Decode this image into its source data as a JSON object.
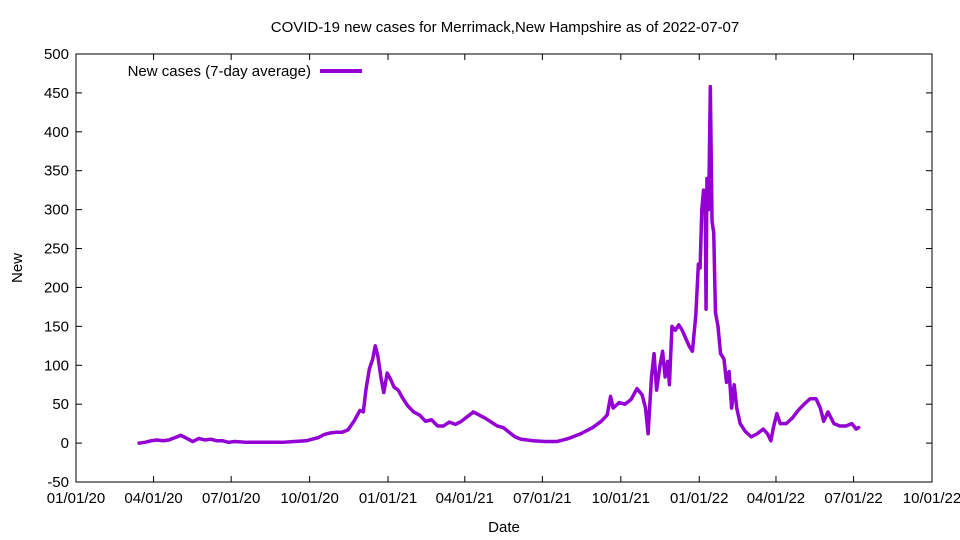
{
  "chart_data": {
    "type": "line",
    "title": "COVID-19 new cases for Merrimack,New Hampshire as of 2022-07-07",
    "xlabel": "Date",
    "ylabel": "New",
    "xlim": [
      "2020-01-01",
      "2022-10-01"
    ],
    "ylim": [
      -50,
      500
    ],
    "grid": false,
    "legend_position": "top-left",
    "x_ticks": [
      "2020-01-01",
      "2020-04-01",
      "2020-07-01",
      "2020-10-01",
      "2021-01-01",
      "2021-04-01",
      "2021-07-01",
      "2021-10-01",
      "2022-01-01",
      "2022-04-01",
      "2022-07-01",
      "2022-10-01"
    ],
    "x_tick_labels": [
      "01/01/20",
      "04/01/20",
      "07/01/20",
      "10/01/20",
      "01/01/21",
      "04/01/21",
      "07/01/21",
      "10/01/21",
      "01/01/22",
      "04/01/22",
      "07/01/22",
      "10/01/22"
    ],
    "y_ticks": [
      -50,
      0,
      50,
      100,
      150,
      200,
      250,
      300,
      350,
      400,
      450,
      500
    ],
    "series": [
      {
        "name": "New cases (7-day average)",
        "color": "#9400d3",
        "points": [
          [
            "2020-03-15",
            0
          ],
          [
            "2020-03-22",
            1
          ],
          [
            "2020-03-29",
            3
          ],
          [
            "2020-04-05",
            4
          ],
          [
            "2020-04-12",
            3
          ],
          [
            "2020-04-19",
            4
          ],
          [
            "2020-04-26",
            7
          ],
          [
            "2020-05-03",
            10
          ],
          [
            "2020-05-10",
            6
          ],
          [
            "2020-05-17",
            2
          ],
          [
            "2020-05-24",
            6
          ],
          [
            "2020-05-31",
            4
          ],
          [
            "2020-06-07",
            5
          ],
          [
            "2020-06-14",
            3
          ],
          [
            "2020-06-21",
            3
          ],
          [
            "2020-06-28",
            1
          ],
          [
            "2020-07-05",
            2
          ],
          [
            "2020-07-19",
            1
          ],
          [
            "2020-08-02",
            1
          ],
          [
            "2020-08-16",
            1
          ],
          [
            "2020-08-30",
            1
          ],
          [
            "2020-09-13",
            2
          ],
          [
            "2020-09-27",
            3
          ],
          [
            "2020-10-04",
            5
          ],
          [
            "2020-10-11",
            7
          ],
          [
            "2020-10-18",
            11
          ],
          [
            "2020-10-25",
            13
          ],
          [
            "2020-11-01",
            14
          ],
          [
            "2020-11-08",
            14
          ],
          [
            "2020-11-15",
            17
          ],
          [
            "2020-11-22",
            28
          ],
          [
            "2020-11-29",
            42
          ],
          [
            "2020-12-03",
            40
          ],
          [
            "2020-12-06",
            68
          ],
          [
            "2020-12-10",
            95
          ],
          [
            "2020-12-14",
            108
          ],
          [
            "2020-12-17",
            125
          ],
          [
            "2020-12-20",
            112
          ],
          [
            "2020-12-24",
            82
          ],
          [
            "2020-12-27",
            65
          ],
          [
            "2020-12-31",
            90
          ],
          [
            "2021-01-04",
            82
          ],
          [
            "2021-01-08",
            72
          ],
          [
            "2021-01-13",
            68
          ],
          [
            "2021-01-18",
            58
          ],
          [
            "2021-01-24",
            48
          ],
          [
            "2021-01-31",
            40
          ],
          [
            "2021-02-07",
            36
          ],
          [
            "2021-02-14",
            28
          ],
          [
            "2021-02-21",
            30
          ],
          [
            "2021-02-28",
            22
          ],
          [
            "2021-03-07",
            22
          ],
          [
            "2021-03-14",
            27
          ],
          [
            "2021-03-21",
            24
          ],
          [
            "2021-03-28",
            28
          ],
          [
            "2021-04-04",
            34
          ],
          [
            "2021-04-11",
            40
          ],
          [
            "2021-04-18",
            36
          ],
          [
            "2021-04-25",
            32
          ],
          [
            "2021-05-02",
            27
          ],
          [
            "2021-05-09",
            22
          ],
          [
            "2021-05-16",
            20
          ],
          [
            "2021-05-23",
            14
          ],
          [
            "2021-05-30",
            8
          ],
          [
            "2021-06-06",
            5
          ],
          [
            "2021-06-20",
            3
          ],
          [
            "2021-07-04",
            2
          ],
          [
            "2021-07-18",
            2
          ],
          [
            "2021-08-01",
            6
          ],
          [
            "2021-08-15",
            12
          ],
          [
            "2021-08-29",
            20
          ],
          [
            "2021-09-08",
            28
          ],
          [
            "2021-09-15",
            36
          ],
          [
            "2021-09-19",
            60
          ],
          [
            "2021-09-22",
            45
          ],
          [
            "2021-09-29",
            52
          ],
          [
            "2021-10-06",
            50
          ],
          [
            "2021-10-13",
            56
          ],
          [
            "2021-10-20",
            70
          ],
          [
            "2021-10-26",
            62
          ],
          [
            "2021-10-30",
            45
          ],
          [
            "2021-11-02",
            12
          ],
          [
            "2021-11-06",
            85
          ],
          [
            "2021-11-09",
            115
          ],
          [
            "2021-11-12",
            68
          ],
          [
            "2021-11-16",
            100
          ],
          [
            "2021-11-19",
            118
          ],
          [
            "2021-11-22",
            85
          ],
          [
            "2021-11-25",
            105
          ],
          [
            "2021-11-27",
            75
          ],
          [
            "2021-11-30",
            150
          ],
          [
            "2021-12-04",
            145
          ],
          [
            "2021-12-08",
            152
          ],
          [
            "2021-12-12",
            145
          ],
          [
            "2021-12-16",
            135
          ],
          [
            "2021-12-20",
            125
          ],
          [
            "2021-12-24",
            118
          ],
          [
            "2021-12-28",
            165
          ],
          [
            "2021-12-31",
            230
          ],
          [
            "2022-01-02",
            225
          ],
          [
            "2022-01-04",
            300
          ],
          [
            "2022-01-06",
            325
          ],
          [
            "2022-01-08",
            305
          ],
          [
            "2022-01-09",
            172
          ],
          [
            "2022-01-10",
            340
          ],
          [
            "2022-01-12",
            300
          ],
          [
            "2022-01-14",
            458
          ],
          [
            "2022-01-16",
            285
          ],
          [
            "2022-01-18",
            270
          ],
          [
            "2022-01-20",
            168
          ],
          [
            "2022-01-23",
            150
          ],
          [
            "2022-01-26",
            115
          ],
          [
            "2022-01-30",
            108
          ],
          [
            "2022-02-02",
            78
          ],
          [
            "2022-02-05",
            92
          ],
          [
            "2022-02-08",
            45
          ],
          [
            "2022-02-11",
            75
          ],
          [
            "2022-02-14",
            45
          ],
          [
            "2022-02-18",
            25
          ],
          [
            "2022-02-24",
            15
          ],
          [
            "2022-03-03",
            8
          ],
          [
            "2022-03-10",
            12
          ],
          [
            "2022-03-17",
            18
          ],
          [
            "2022-03-22",
            12
          ],
          [
            "2022-03-26",
            3
          ],
          [
            "2022-03-29",
            20
          ],
          [
            "2022-04-02",
            38
          ],
          [
            "2022-04-06",
            25
          ],
          [
            "2022-04-13",
            25
          ],
          [
            "2022-04-20",
            32
          ],
          [
            "2022-04-27",
            42
          ],
          [
            "2022-05-04",
            50
          ],
          [
            "2022-05-11",
            57
          ],
          [
            "2022-05-18",
            57
          ],
          [
            "2022-05-23",
            45
          ],
          [
            "2022-05-27",
            28
          ],
          [
            "2022-06-01",
            40
          ],
          [
            "2022-06-08",
            25
          ],
          [
            "2022-06-15",
            22
          ],
          [
            "2022-06-22",
            22
          ],
          [
            "2022-06-29",
            25
          ],
          [
            "2022-07-04",
            18
          ],
          [
            "2022-07-07",
            20
          ]
        ]
      }
    ]
  }
}
